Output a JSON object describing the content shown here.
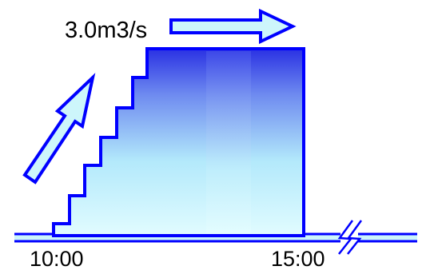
{
  "labels": {
    "flow_rate": "3.0m3/s",
    "start_time": "10:00",
    "end_time": "15:00"
  },
  "icons": {
    "rise_arrow": "diagonal-up-arrow-icon",
    "flat_arrow": "right-arrow-icon",
    "axis_break": "axis-break-icon"
  },
  "colors": {
    "stroke": "#0000ff",
    "fill_top": "#2b34e6",
    "fill_bottom": "#dcfbff",
    "arrow_fill": "#cdf6fb"
  }
}
